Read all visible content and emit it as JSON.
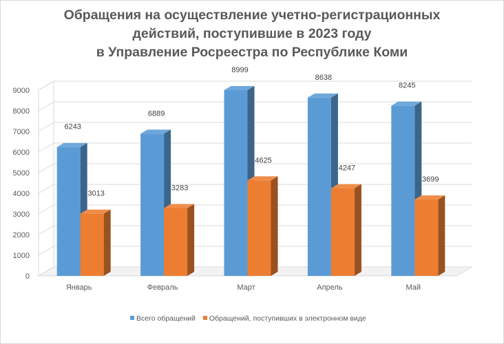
{
  "chart_data": {
    "type": "bar",
    "title_lines": [
      "Обращения на осуществление учетно-регистрационных",
      "действий, поступившие в 2023 году",
      "в Управление Росреестра по Республике Коми"
    ],
    "categories": [
      "Январь",
      "Февраль",
      "Март",
      "Апрель",
      "Май"
    ],
    "series": [
      {
        "name": "Всего обращений",
        "values": [
          6243,
          6889,
          8999,
          8638,
          8245
        ],
        "color": "#5b9bd5"
      },
      {
        "name": "Обращений, поступивших в электронном виде",
        "values": [
          3013,
          3283,
          4625,
          4247,
          3699
        ],
        "color": "#ed7d31"
      }
    ],
    "ylim": [
      0,
      9000
    ],
    "yticks": [
      0,
      1000,
      2000,
      3000,
      4000,
      5000,
      6000,
      7000,
      8000,
      9000
    ],
    "grid": true,
    "style": "3d-clustered-column",
    "legend_position": "bottom"
  }
}
